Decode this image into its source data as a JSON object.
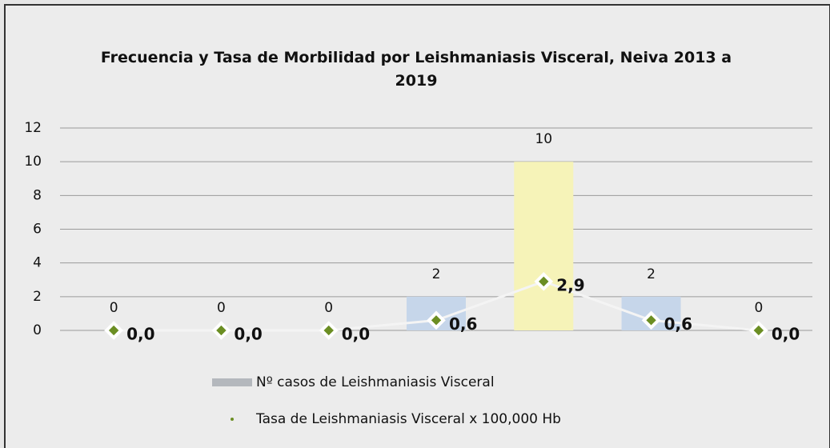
{
  "chart_data": {
    "type": "bar-line",
    "title": "Frecuencia y Tasa de Morbilidad por Leishmaniasis Visceral, Neiva 2013 a 2019",
    "categories": [
      null,
      null,
      null,
      null,
      null,
      null,
      null
    ],
    "series": [
      {
        "name": "Nº casos de Leishmaniasis Visceral",
        "type": "bar",
        "color": "#b4b8bd",
        "colors": [
          "#c6d6ea",
          "#c6d6ea",
          "#c6d6ea",
          "#c6d6ea",
          "#f6f3b8",
          "#c6d6ea",
          "#c6d6ea"
        ],
        "values": [
          0,
          0,
          0,
          2,
          10,
          2,
          0
        ]
      },
      {
        "name": "Tasa de Leishmaniasis Visceral x 100,000 Hb",
        "type": "line",
        "color": "#6b8e23",
        "line_color": "#f4f4f4",
        "values": [
          0,
          0,
          0,
          0.6,
          2.9,
          0.6,
          0
        ],
        "value_labels": [
          "0,0",
          "0,0",
          "0,0",
          "0,6",
          "2,9",
          "0,6",
          "0,0"
        ]
      }
    ],
    "ylim": [
      0,
      12
    ],
    "yticks": [
      0,
      2,
      4,
      6,
      8,
      10,
      12
    ],
    "grid": true,
    "legend": "bottom"
  }
}
